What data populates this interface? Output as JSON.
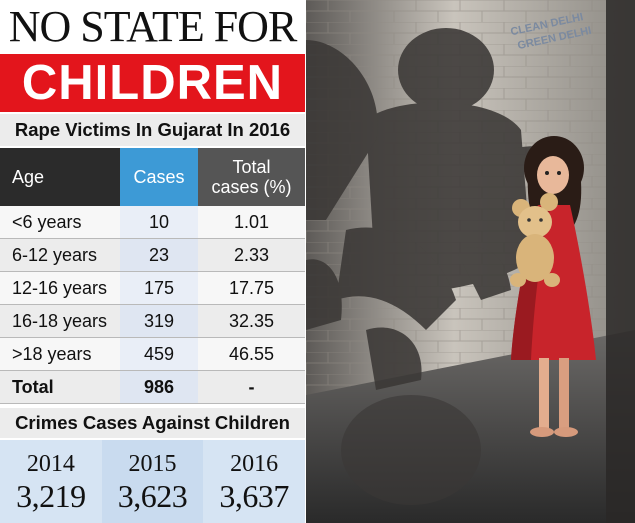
{
  "headline": {
    "line1": "NO STATE FOR",
    "line2": "CHILDREN"
  },
  "subtitle": "Rape Victims In Gujarat In 2016",
  "table": {
    "headers": {
      "age": "Age",
      "cases": "Cases",
      "total_line1": "Total",
      "total_line2": "cases (%)"
    },
    "rows": [
      {
        "age": "<6 years",
        "cases": "10",
        "pct": "1.01"
      },
      {
        "age": "6-12 years",
        "cases": "23",
        "pct": "2.33"
      },
      {
        "age": "12-16 years",
        "cases": "175",
        "pct": "17.75"
      },
      {
        "age": "16-18 years",
        "cases": "319",
        "pct": "32.35"
      },
      {
        "age": ">18 years",
        "cases": "459",
        "pct": "46.55"
      }
    ],
    "total": {
      "age": "Total",
      "cases": "986",
      "pct": "-"
    }
  },
  "section2_title": "Crimes Cases Against Children",
  "years": [
    {
      "year": "2014",
      "value": "3,219"
    },
    {
      "year": "2015",
      "value": "3,623"
    },
    {
      "year": "2016",
      "value": "3,637"
    }
  ],
  "wall_sign": {
    "line1": "CLEAN DELHI",
    "line2": "GREEN DELHI"
  },
  "colors": {
    "headline_red": "#e3151c",
    "cases_blue": "#3d9ad6",
    "header_dark": "#2b2b2b",
    "header_gray": "#555555",
    "dress_red": "#c8242b"
  },
  "chart_data": [
    {
      "type": "table",
      "title": "Rape Victims In Gujarat In 2016",
      "columns": [
        "Age",
        "Cases",
        "Total cases (%)"
      ],
      "rows": [
        [
          "<6 years",
          10,
          1.01
        ],
        [
          "6-12 years",
          23,
          2.33
        ],
        [
          "12-16 years",
          175,
          17.75
        ],
        [
          "16-18 years",
          319,
          32.35
        ],
        [
          ">18 years",
          459,
          46.55
        ],
        [
          "Total",
          986,
          "-"
        ]
      ]
    },
    {
      "type": "table",
      "title": "Crimes Cases Against Children",
      "columns": [
        "2014",
        "2015",
        "2016"
      ],
      "rows": [
        [
          3219,
          3623,
          3637
        ]
      ]
    }
  ]
}
